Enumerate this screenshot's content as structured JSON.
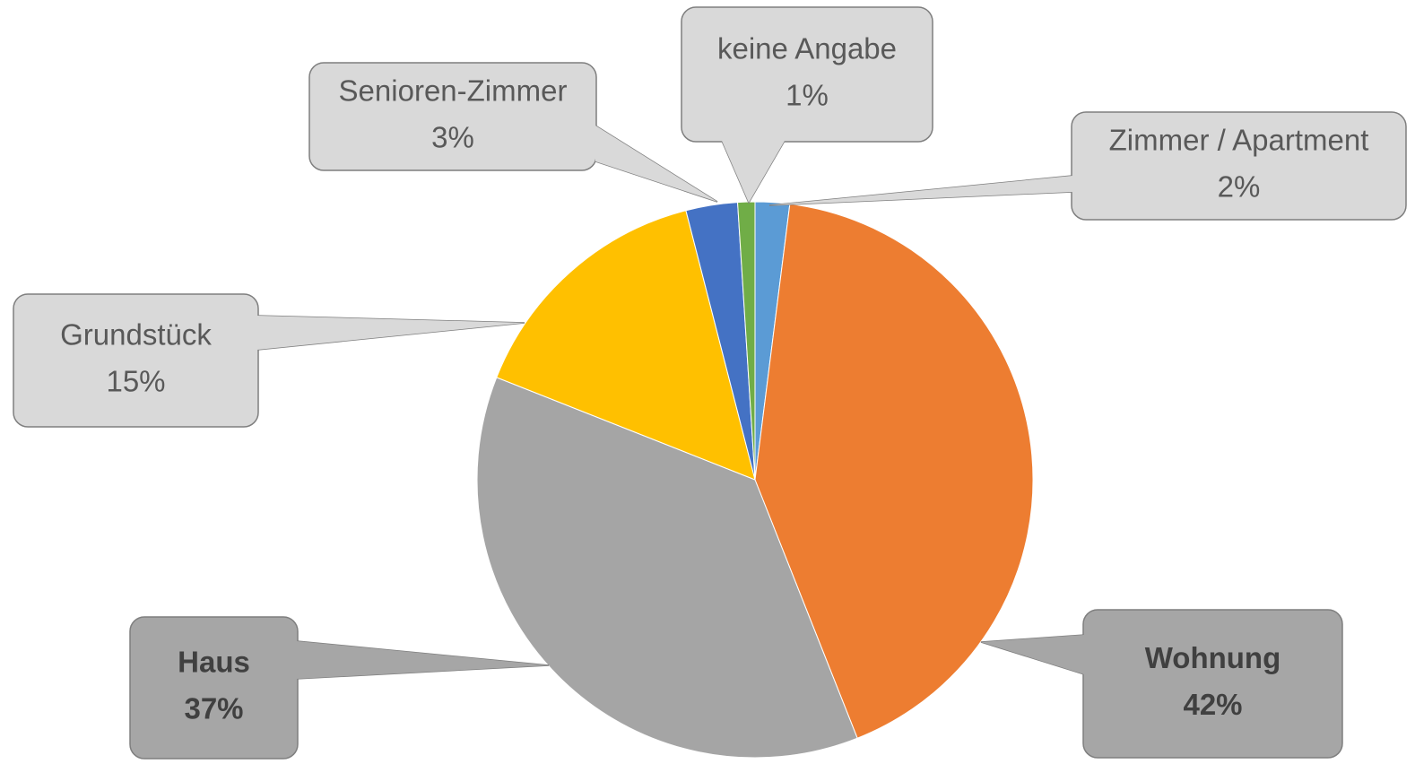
{
  "chart_data": {
    "type": "pie",
    "categories": [
      "Zimmer / Apartment",
      "Wohnung",
      "Haus",
      "Grundstück",
      "Senioren-Zimmer",
      "keine Angabe"
    ],
    "values": [
      2,
      42,
      37,
      15,
      3,
      1
    ],
    "value_labels": [
      "2%",
      "42%",
      "37%",
      "15%",
      "3%",
      "1%"
    ],
    "colors": [
      "#5b9bd5",
      "#ed7d31",
      "#a5a5a5",
      "#ffc000",
      "#4472c4",
      "#70ad47"
    ]
  }
}
